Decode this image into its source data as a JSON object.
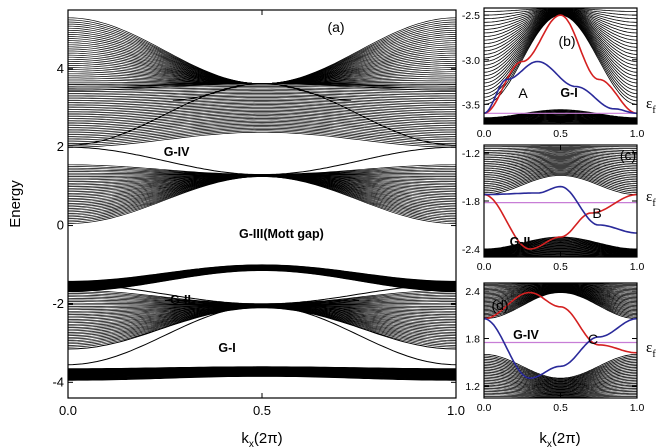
{
  "chart_data": [
    {
      "id": "a",
      "type": "line",
      "panel_label": "(a)",
      "xlabel_main": "k",
      "xlabel_sub": "x",
      "xlabel_unit": "(2π)",
      "ylabel": "Energy",
      "xlim": [
        0.0,
        1.0
      ],
      "ylim": [
        -4.4,
        5.5
      ],
      "xticks": [
        "0.0",
        "0.5",
        "1.0"
      ],
      "xtick_values": [
        0.0,
        0.5,
        1.0
      ],
      "yticks": [
        "-4",
        "-2",
        "0",
        "2",
        "4"
      ],
      "ytick_values": [
        -4,
        -2,
        0,
        2,
        4
      ],
      "annotations": [
        {
          "text": "G-IV",
          "x": 0.28,
          "y": 1.77
        },
        {
          "text": "G-III(Mott gap)",
          "x": 0.55,
          "y": -0.32
        },
        {
          "text": "G-II",
          "x": 0.29,
          "y": -2.0
        },
        {
          "text": "G-I",
          "x": 0.41,
          "y": -3.23
        }
      ],
      "bands": [
        {
          "name": "band1",
          "min": [
            3.45,
            3.62,
            3.45
          ],
          "max": [
            5.3,
            3.62,
            5.3
          ]
        },
        {
          "name": "band2",
          "min": [
            2.0,
            2.38,
            2.0
          ],
          "max": [
            3.6,
            3.62,
            3.6
          ]
        },
        {
          "name": "band3",
          "min": [
            0.05,
            1.25,
            0.05
          ],
          "max": [
            1.55,
            1.3,
            1.55
          ]
        },
        {
          "name": "band4",
          "min": [
            -1.68,
            -1.15,
            -1.68
          ],
          "max": [
            -1.42,
            -1.0,
            -1.42
          ]
        },
        {
          "name": "band5",
          "min": [
            -3.1,
            -2.1,
            -3.1
          ],
          "max": [
            -1.65,
            -2.0,
            -1.65
          ]
        },
        {
          "name": "band6",
          "min": [
            -3.95,
            -3.85,
            -3.95
          ],
          "max": [
            -3.65,
            -3.6,
            -3.65
          ]
        }
      ],
      "edge_states": [
        {
          "name": "edge-a1",
          "x": [
            0.27,
            0.5,
            1.0
          ],
          "y": [
            3.2,
            3.62,
            2.05
          ]
        },
        {
          "name": "edge-a2",
          "x": [
            0.0,
            0.5,
            0.73
          ],
          "y": [
            2.05,
            3.62,
            3.2
          ]
        },
        {
          "name": "edge-a3",
          "x": [
            0.3,
            0.5,
            1.0
          ],
          "y": [
            1.35,
            1.3,
            2.0
          ]
        },
        {
          "name": "edge-a4",
          "x": [
            0.0,
            0.5,
            0.7
          ],
          "y": [
            2.0,
            1.3,
            1.35
          ]
        },
        {
          "name": "edge-a5",
          "x": [
            0.0,
            0.5,
            0.75
          ],
          "y": [
            -1.5,
            -2.0,
            -1.9
          ]
        },
        {
          "name": "edge-a6",
          "x": [
            0.25,
            0.5,
            1.0
          ],
          "y": [
            -1.9,
            -2.0,
            -1.5
          ]
        },
        {
          "name": "edge-a7",
          "x": [
            0.0,
            0.5,
            1.0
          ],
          "y": [
            -3.55,
            -2.05,
            -3.15
          ]
        },
        {
          "name": "edge-a8",
          "x": [
            0.0,
            0.5,
            1.0
          ],
          "y": [
            -3.15,
            -2.05,
            -3.55
          ]
        }
      ]
    },
    {
      "id": "b",
      "type": "line",
      "panel_label": "(b)",
      "gap_label": "G-I",
      "point_label": "A",
      "xlim": [
        0.0,
        1.0
      ],
      "ylim": [
        -3.72,
        -2.42
      ],
      "xticks": [
        "0.0",
        "0.5",
        "1.0"
      ],
      "xtick_values": [
        0.0,
        0.5,
        1.0
      ],
      "yticks": [
        "-2.5",
        "-3.0",
        "-3.5"
      ],
      "ytick_values": [
        -2.5,
        -3.0,
        -3.5
      ],
      "fermi_level": -3.6,
      "fermi_label_main": "ε",
      "fermi_label_sub": "f",
      "bands": [
        {
          "name": "upper",
          "min": [
            -3.5,
            -2.5,
            -3.5
          ],
          "max": [
            -2.42,
            -2.42,
            -2.42
          ]
        },
        {
          "name": "lower",
          "min": [
            -3.72,
            -3.72,
            -3.72
          ],
          "max": [
            -3.65,
            -3.56,
            -3.65
          ]
        }
      ],
      "series": [
        {
          "name": "",
          "color": "#d42020",
          "x": [
            0.0,
            0.25,
            0.5,
            0.75,
            1.0
          ],
          "y": [
            -3.6,
            -3.02,
            -2.5,
            -3.22,
            -3.6
          ]
        },
        {
          "name": "",
          "color": "#2a2a9a",
          "x": [
            0.0,
            0.15,
            0.35,
            0.6,
            0.85,
            1.0
          ],
          "y": [
            -3.6,
            -3.22,
            -3.02,
            -3.3,
            -3.55,
            -3.6
          ]
        }
      ]
    },
    {
      "id": "c",
      "type": "line",
      "panel_label": "(c)",
      "gap_label": "G-II",
      "point_label": "B",
      "xlim": [
        0.0,
        1.0
      ],
      "ylim": [
        -2.5,
        -1.1
      ],
      "xticks": [
        "0.0",
        "0.5",
        "1.0"
      ],
      "xtick_values": [
        0.0,
        0.5,
        1.0
      ],
      "yticks": [
        "-1.2",
        "-1.8",
        "-2.4"
      ],
      "ytick_values": [
        -1.2,
        -1.8,
        -2.4
      ],
      "fermi_level": -1.82,
      "fermi_label_main": "ε",
      "fermi_label_sub": "f",
      "bands": [
        {
          "name": "upper",
          "min": [
            -1.72,
            -1.48,
            -1.72
          ],
          "max": [
            -1.1,
            -1.1,
            -1.1
          ]
        },
        {
          "name": "lower",
          "min": [
            -2.5,
            -2.5,
            -2.5
          ],
          "max": [
            -2.4,
            -2.25,
            -2.4
          ]
        }
      ],
      "series": [
        {
          "name": "",
          "color": "#d42020",
          "x": [
            0.0,
            0.3,
            0.5,
            0.7,
            1.0
          ],
          "y": [
            -1.72,
            -2.4,
            -2.25,
            -1.95,
            -1.72
          ]
        },
        {
          "name": "",
          "color": "#2a2a9a",
          "x": [
            0.0,
            0.35,
            0.5,
            0.75,
            1.0
          ],
          "y": [
            -1.72,
            -1.7,
            -1.62,
            -2.1,
            -2.2
          ]
        }
      ]
    },
    {
      "id": "d",
      "type": "line",
      "panel_label": "(d)",
      "gap_label": "G-IV",
      "point_label": "C",
      "xlim": [
        0.0,
        1.0
      ],
      "ylim": [
        1.05,
        2.5
      ],
      "xticks": [
        "0.0",
        "0.5",
        "1.0"
      ],
      "xtick_values": [
        0.0,
        0.5,
        1.0
      ],
      "yticks": [
        "2.4",
        "1.8",
        "1.2"
      ],
      "ytick_values": [
        2.4,
        1.8,
        1.2
      ],
      "fermi_level": 1.75,
      "fermi_label_main": "ε",
      "fermi_label_sub": "f",
      "bands": [
        {
          "name": "upper",
          "min": [
            2.05,
            2.38,
            2.05
          ],
          "max": [
            2.5,
            2.5,
            2.5
          ]
        },
        {
          "name": "lower",
          "min": [
            1.05,
            1.05,
            1.05
          ],
          "max": [
            1.6,
            1.3,
            1.6
          ]
        }
      ],
      "series": [
        {
          "name": "",
          "color": "#d42020",
          "x": [
            0.0,
            0.3,
            0.5,
            0.75,
            1.0
          ],
          "y": [
            2.05,
            2.38,
            2.2,
            1.72,
            1.62
          ]
        },
        {
          "name": "",
          "color": "#2a2a9a",
          "x": [
            0.0,
            0.3,
            0.5,
            0.75,
            1.0
          ],
          "y": [
            2.05,
            1.3,
            1.45,
            1.82,
            2.05
          ]
        }
      ]
    }
  ],
  "shared": {
    "xlabel_main": "k",
    "xlabel_sub": "x",
    "xlabel_unit": "(2π)"
  }
}
